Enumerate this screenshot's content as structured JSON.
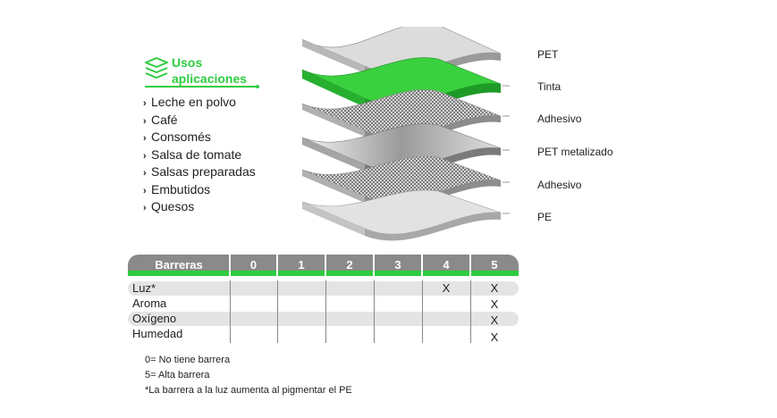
{
  "uses": {
    "title_line1": "Usos",
    "title_line2": "aplicaciones",
    "items": [
      "Leche en polvo",
      "Café",
      "Consomés",
      "Salsa de tomate",
      "Salsas preparadas",
      "Embutidos",
      "Quesos"
    ]
  },
  "layers": [
    "PET",
    "Tinta",
    "Adhesivo",
    "PET metalizado",
    "Adhesivo",
    "PE"
  ],
  "colors": {
    "accent": "#2ecc40",
    "header_gray": "#8a8a8a",
    "row_band": "#e4e4e4"
  },
  "table": {
    "header": [
      "Barreras",
      "0",
      "1",
      "2",
      "3",
      "4",
      "5"
    ],
    "rows": [
      {
        "label": "Luz*",
        "marks": [
          "",
          "",
          "",
          "",
          "X",
          "X"
        ]
      },
      {
        "label": "Aroma",
        "marks": [
          "",
          "",
          "",
          "",
          "",
          "X"
        ]
      },
      {
        "label": "Oxígeno",
        "marks": [
          "",
          "",
          "",
          "",
          "",
          "X"
        ]
      },
      {
        "label": "Humedad",
        "marks": [
          "",
          "",
          "",
          "",
          "",
          "X"
        ]
      }
    ]
  },
  "notes": [
    "0= No tiene barrera",
    "5= Alta barrera",
    "*La barrera a la luz aumenta al pigmentar el PE"
  ]
}
